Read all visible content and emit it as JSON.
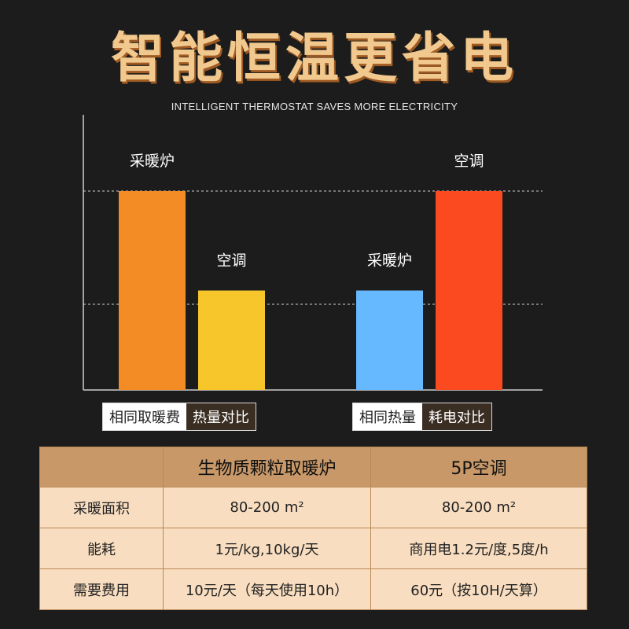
{
  "title": "智能恒温更省电",
  "subtitle": "INTELLIGENT THERMOSTAT SAVES MORE ELECTRICITY",
  "colors": {
    "background": "#1c1c1c",
    "title": "#f1c98e",
    "heater": "#f38c24",
    "ac_yellow": "#f6c62b",
    "heater_blue": "#66b8ff",
    "ac_red": "#fb4a1f"
  },
  "chart_data": [
    {
      "type": "bar",
      "group_label_a": "相同取暖费",
      "group_label_b": "热量对比",
      "categories": [
        "采暖炉",
        "空调"
      ],
      "values": [
        2,
        1
      ],
      "colors": [
        "#f38c24",
        "#f6c62b"
      ],
      "grid": "dashed reference lines at bar tops"
    },
    {
      "type": "bar",
      "group_label_a": "相同热量",
      "group_label_b": "耗电对比",
      "categories": [
        "采暖炉",
        "空调"
      ],
      "values": [
        1,
        2
      ],
      "colors": [
        "#66b8ff",
        "#fb4a1f"
      ],
      "grid": "dashed reference lines at bar tops"
    }
  ],
  "table": {
    "headers": [
      "",
      "生物质颗粒取暖炉",
      "5P空调"
    ],
    "rows": [
      [
        "采暖面积",
        "80-200 m²",
        "80-200 m²"
      ],
      [
        "能耗",
        "1元/kg,10kg/天",
        "商用电1.2元/度,5度/h"
      ],
      [
        "需要费用",
        "10元/天（每天使用10h）",
        "60元（按10H/天算）"
      ]
    ]
  }
}
